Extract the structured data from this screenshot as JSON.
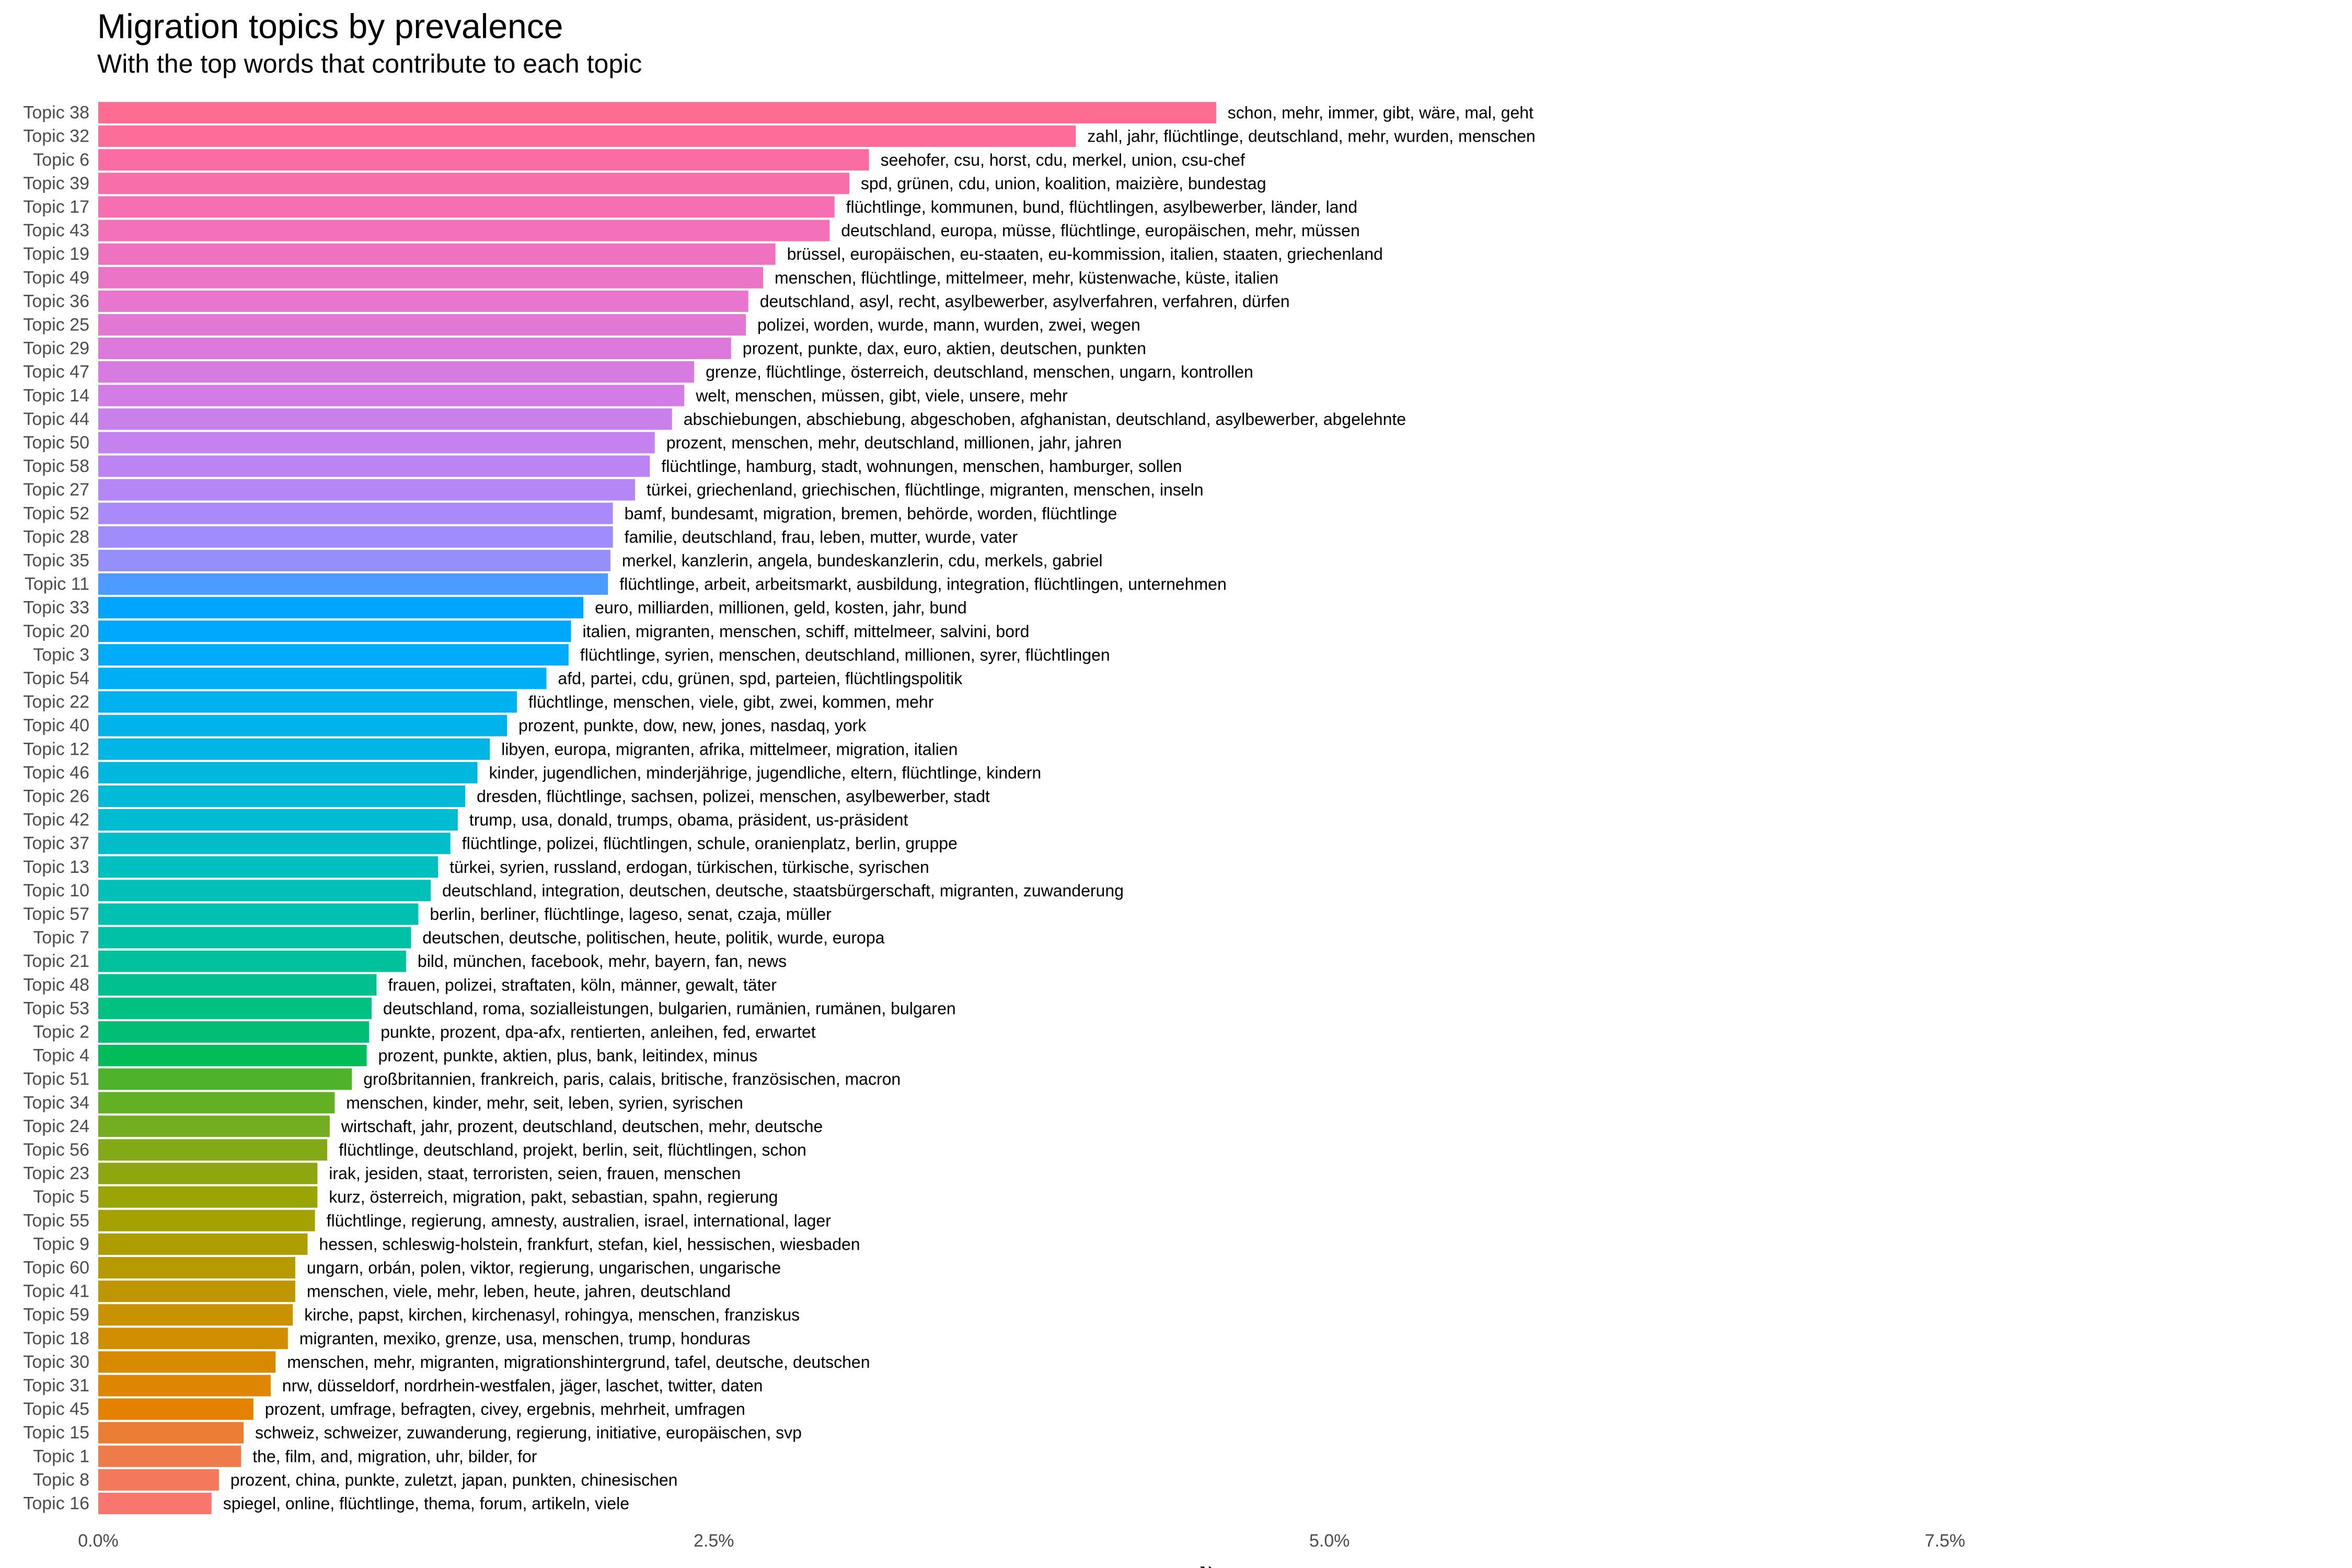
{
  "title": "Migration topics by prevalence",
  "subtitle": "With the top words that contribute to each topic",
  "chart_data": {
    "type": "bar",
    "orientation": "horizontal",
    "xlabel": "γ",
    "xlim": [
      0,
      0.09
    ],
    "xticks": [
      0,
      0.025,
      0.05,
      0.075
    ],
    "xtick_labels": [
      "0.0%",
      "2.5%",
      "5.0%",
      "7.5%"
    ],
    "grid": false,
    "legend": "none",
    "bars": [
      {
        "topic": "Topic 38",
        "gamma": 0.0454,
        "terms": "schon, mehr, immer, gibt, wäre, mal, geht",
        "color": "#FF6C91"
      },
      {
        "topic": "Topic 32",
        "gamma": 0.0397,
        "terms": "zahl, jahr, flüchtlinge, deutschland, mehr, wurden, menschen",
        "color": "#FD6D9A"
      },
      {
        "topic": "Topic 6",
        "gamma": 0.0313,
        "terms": "seehofer, csu, horst, cdu, merkel, union, csu-chef",
        "color": "#FB6DA2"
      },
      {
        "topic": "Topic 39",
        "gamma": 0.0305,
        "terms": "spd, grünen, cdu, union, koalition, maizière, bundestag",
        "color": "#F86EAA"
      },
      {
        "topic": "Topic 17",
        "gamma": 0.0299,
        "terms": "flüchtlinge, kommunen, bund, flüchtlingen, asylbewerber, länder, land",
        "color": "#F66FB2"
      },
      {
        "topic": "Topic 43",
        "gamma": 0.0297,
        "terms": "deutschland, europa, müsse, flüchtlinge, europäischen, mehr, müssen",
        "color": "#F371B9"
      },
      {
        "topic": "Topic 19",
        "gamma": 0.0275,
        "terms": "brüssel, europäischen, eu-staaten, eu-kommission, italien, staaten, griechenland",
        "color": "#EF72C0"
      },
      {
        "topic": "Topic 49",
        "gamma": 0.027,
        "terms": "menschen, flüchtlinge, mittelmeer, mehr, küstenwache, küste, italien",
        "color": "#EB74C7"
      },
      {
        "topic": "Topic 36",
        "gamma": 0.0264,
        "terms": "deutschland, asyl, recht, asylbewerber, asylverfahren, verfahren, dürfen",
        "color": "#E776CE"
      },
      {
        "topic": "Topic 25",
        "gamma": 0.0263,
        "terms": "polizei, worden, wurde, mann, wurden, zwei, wegen",
        "color": "#E277D4"
      },
      {
        "topic": "Topic 29",
        "gamma": 0.0257,
        "terms": "prozent, punkte, dax, euro, aktien, deutschen, punkten",
        "color": "#DD79DA"
      },
      {
        "topic": "Topic 47",
        "gamma": 0.0242,
        "terms": "grenze, flüchtlinge, österreich, deutschland, menschen, ungarn, kontrollen",
        "color": "#D77BE0"
      },
      {
        "topic": "Topic 14",
        "gamma": 0.0238,
        "terms": "welt, menschen, müssen, gibt, viele, unsere, mehr",
        "color": "#D17DE5"
      },
      {
        "topic": "Topic 44",
        "gamma": 0.0233,
        "terms": "abschiebungen, abschiebung, abgeschoben, afghanistan, deutschland, asylbewerber, abgelehnte",
        "color": "#CA80EA"
      },
      {
        "topic": "Topic 50",
        "gamma": 0.0226,
        "terms": "prozent, menschen, mehr, deutschland, millionen, jahr, jahren",
        "color": "#C382EE"
      },
      {
        "topic": "Topic 58",
        "gamma": 0.0224,
        "terms": "flüchtlinge, hamburg, stadt, wohnungen, menschen, hamburger, sollen",
        "color": "#BB84F2"
      },
      {
        "topic": "Topic 27",
        "gamma": 0.0218,
        "terms": "türkei, griechenland, griechischen, flüchtlinge, migranten, menschen, inseln",
        "color": "#B387F5"
      },
      {
        "topic": "Topic 52",
        "gamma": 0.0209,
        "terms": "bamf, bundesamt, migration, bremen, behörde, worden, flüchtlinge",
        "color": "#AA8AF8"
      },
      {
        "topic": "Topic 28",
        "gamma": 0.0209,
        "terms": "familie, deutschland, frau, leben, mutter, wurde, vater",
        "color": "#A08CFA"
      },
      {
        "topic": "Topic 35",
        "gamma": 0.0208,
        "terms": "merkel, kanzlerin, angela, bundeskanzlerin, cdu, merkels, gabriel",
        "color": "#958FFC"
      },
      {
        "topic": "Topic 11",
        "gamma": 0.0207,
        "terms": "flüchtlinge, arbeit, arbeitsmarkt, ausbildung, integration, flüchtlingen, unternehmen",
        "color": "#4E9BFF"
      },
      {
        "topic": "Topic 33",
        "gamma": 0.0197,
        "terms": "euro, milliarden, millionen, geld, kosten, jahr, bund",
        "color": "#00A5FF"
      },
      {
        "topic": "Topic 20",
        "gamma": 0.0192,
        "terms": "italien, migranten, menschen, schiff, mittelmeer, salvini, bord",
        "color": "#00A8FD"
      },
      {
        "topic": "Topic 3",
        "gamma": 0.0191,
        "terms": "flüchtlinge, syrien, menschen, deutschland, millionen, syrer, flüchtlingen",
        "color": "#00ABF9"
      },
      {
        "topic": "Topic 54",
        "gamma": 0.0182,
        "terms": "afd, partei, cdu, grünen, spd, parteien, flüchtlingspolitik",
        "color": "#00AEF5"
      },
      {
        "topic": "Topic 22",
        "gamma": 0.017,
        "terms": "flüchtlinge, menschen, viele, gibt, zwei, kommen, mehr",
        "color": "#00B1F0"
      },
      {
        "topic": "Topic 40",
        "gamma": 0.0166,
        "terms": "prozent, punkte, dow, new, jones, nasdaq, york",
        "color": "#00B4EB"
      },
      {
        "topic": "Topic 12",
        "gamma": 0.0159,
        "terms": "libyen, europa, migranten, afrika, mittelmeer, migration, italien",
        "color": "#00B6E5"
      },
      {
        "topic": "Topic 46",
        "gamma": 0.0154,
        "terms": "kinder, jugendlichen, minderjährige, jugendliche, eltern, flüchtlinge, kindern",
        "color": "#00B8DF"
      },
      {
        "topic": "Topic 26",
        "gamma": 0.0149,
        "terms": "dresden, flüchtlinge, sachsen, polizei, menschen, asylbewerber, stadt",
        "color": "#00BAD8"
      },
      {
        "topic": "Topic 42",
        "gamma": 0.0146,
        "terms": "trump, usa, donald, trumps, obama, präsident, us-präsident",
        "color": "#00BCD1"
      },
      {
        "topic": "Topic 37",
        "gamma": 0.0143,
        "terms": "flüchtlinge, polizei, flüchtlingen, schule, oranienplatz, berlin, gruppe",
        "color": "#00BEC9"
      },
      {
        "topic": "Topic 13",
        "gamma": 0.0138,
        "terms": "türkei, syrien, russland, erdogan, türkischen, türkische, syrischen",
        "color": "#00BFC1"
      },
      {
        "topic": "Topic 10",
        "gamma": 0.0135,
        "terms": "deutschland, integration, deutschen, deutsche, staatsbürgerschaft, migranten, zuwanderung",
        "color": "#00C0B8"
      },
      {
        "topic": "Topic 57",
        "gamma": 0.013,
        "terms": "berlin, berliner, flüchtlinge, lageso, senat, czaja, müller",
        "color": "#00C1AF"
      },
      {
        "topic": "Topic 7",
        "gamma": 0.0127,
        "terms": "deutschen, deutsche, politischen, heute, politik, wurde, europa",
        "color": "#00C1A5"
      },
      {
        "topic": "Topic 21",
        "gamma": 0.0125,
        "terms": "bild, münchen, facebook, mehr, bayern, fan, news",
        "color": "#00C19A"
      },
      {
        "topic": "Topic 48",
        "gamma": 0.0113,
        "terms": "frauen, polizei, straftaten, köln, männer, gewalt, täter",
        "color": "#00C08F"
      },
      {
        "topic": "Topic 53",
        "gamma": 0.0111,
        "terms": "deutschland, roma, sozialleistungen, bulgarien, rumänien, rumänen, bulgaren",
        "color": "#00C082"
      },
      {
        "topic": "Topic 2",
        "gamma": 0.011,
        "terms": "punkte, prozent, dpa-afx, rentierten, anleihen, fed, erwartet",
        "color": "#00BE74"
      },
      {
        "topic": "Topic 4",
        "gamma": 0.0109,
        "terms": "prozent, punkte, aktien, plus, bank, leitindex, minus",
        "color": "#00BC59"
      },
      {
        "topic": "Topic 51",
        "gamma": 0.0103,
        "terms": "großbritannien, frankreich, paris, calais, britische, französischen, macron",
        "color": "#4EB32B"
      },
      {
        "topic": "Topic 34",
        "gamma": 0.0096,
        "terms": "menschen, kinder, mehr, seit, leben, syrien, syrischen",
        "color": "#63B025"
      },
      {
        "topic": "Topic 24",
        "gamma": 0.0094,
        "terms": "wirtschaft, jahr, prozent, deutschland, deutschen, mehr, deutsche",
        "color": "#74AD1F"
      },
      {
        "topic": "Topic 56",
        "gamma": 0.0093,
        "terms": "flüchtlinge, deutschland, projekt, berlin, seit, flüchtlingen, schon",
        "color": "#82AA17"
      },
      {
        "topic": "Topic 23",
        "gamma": 0.0089,
        "terms": "irak, jesiden, staat, terroristen, seien, frauen, menschen",
        "color": "#8FA70E"
      },
      {
        "topic": "Topic 5",
        "gamma": 0.0089,
        "terms": "kurz, österreich, migration, pakt, sebastian, spahn, regierung",
        "color": "#9AA402"
      },
      {
        "topic": "Topic 55",
        "gamma": 0.0088,
        "terms": "flüchtlinge, regierung, amnesty, australien, israel, international, lager",
        "color": "#A4A100"
      },
      {
        "topic": "Topic 9",
        "gamma": 0.0085,
        "terms": "hessen, schleswig-holstein, frankfurt, stefan, kiel, hessischen, wiesbaden",
        "color": "#AE9D00"
      },
      {
        "topic": "Topic 60",
        "gamma": 0.008,
        "terms": "ungarn, orbán, polen, viktor, regierung, ungarischen, ungarische",
        "color": "#B79A00"
      },
      {
        "topic": "Topic 41",
        "gamma": 0.008,
        "terms": "menschen, viele, mehr, leben, heute, jahren, deutschland",
        "color": "#C09600"
      },
      {
        "topic": "Topic 59",
        "gamma": 0.0079,
        "terms": "kirche, papst, kirchen, kirchenasyl, rohingya, menschen, franziskus",
        "color": "#C89200"
      },
      {
        "topic": "Topic 18",
        "gamma": 0.0077,
        "terms": "migranten, mexiko, grenze, usa, menschen, trump, honduras",
        "color": "#D08E00"
      },
      {
        "topic": "Topic 30",
        "gamma": 0.0072,
        "terms": "menschen, mehr, migranten, migrationshintergrund, tafel, deutsche, deutschen",
        "color": "#D78A00"
      },
      {
        "topic": "Topic 31",
        "gamma": 0.007,
        "terms": "nrw, düsseldorf, nordrhein-westfalen, jäger, laschet, twitter, daten",
        "color": "#DE8600"
      },
      {
        "topic": "Topic 45",
        "gamma": 0.0063,
        "terms": "prozent, umfrage, befragten, civey, ergebnis, mehrheit, umfragen",
        "color": "#E48200"
      },
      {
        "topic": "Topic 15",
        "gamma": 0.0059,
        "terms": "schweiz, schweizer, zuwanderung, regierung, initiative, europäischen, svp",
        "color": "#EA7E35"
      },
      {
        "topic": "Topic 1",
        "gamma": 0.0058,
        "terms": "the, film, and, migration, uhr, bilder, for",
        "color": "#EF7B4B"
      },
      {
        "topic": "Topic 8",
        "gamma": 0.0049,
        "terms": "prozent, china, punkte, zuletzt, japan, punkten, chinesischen",
        "color": "#F3785C"
      },
      {
        "topic": "Topic 16",
        "gamma": 0.0046,
        "terms": "spiegel, online, flüchtlinge, thema, forum, artikeln, viele",
        "color": "#F8766D"
      }
    ]
  }
}
